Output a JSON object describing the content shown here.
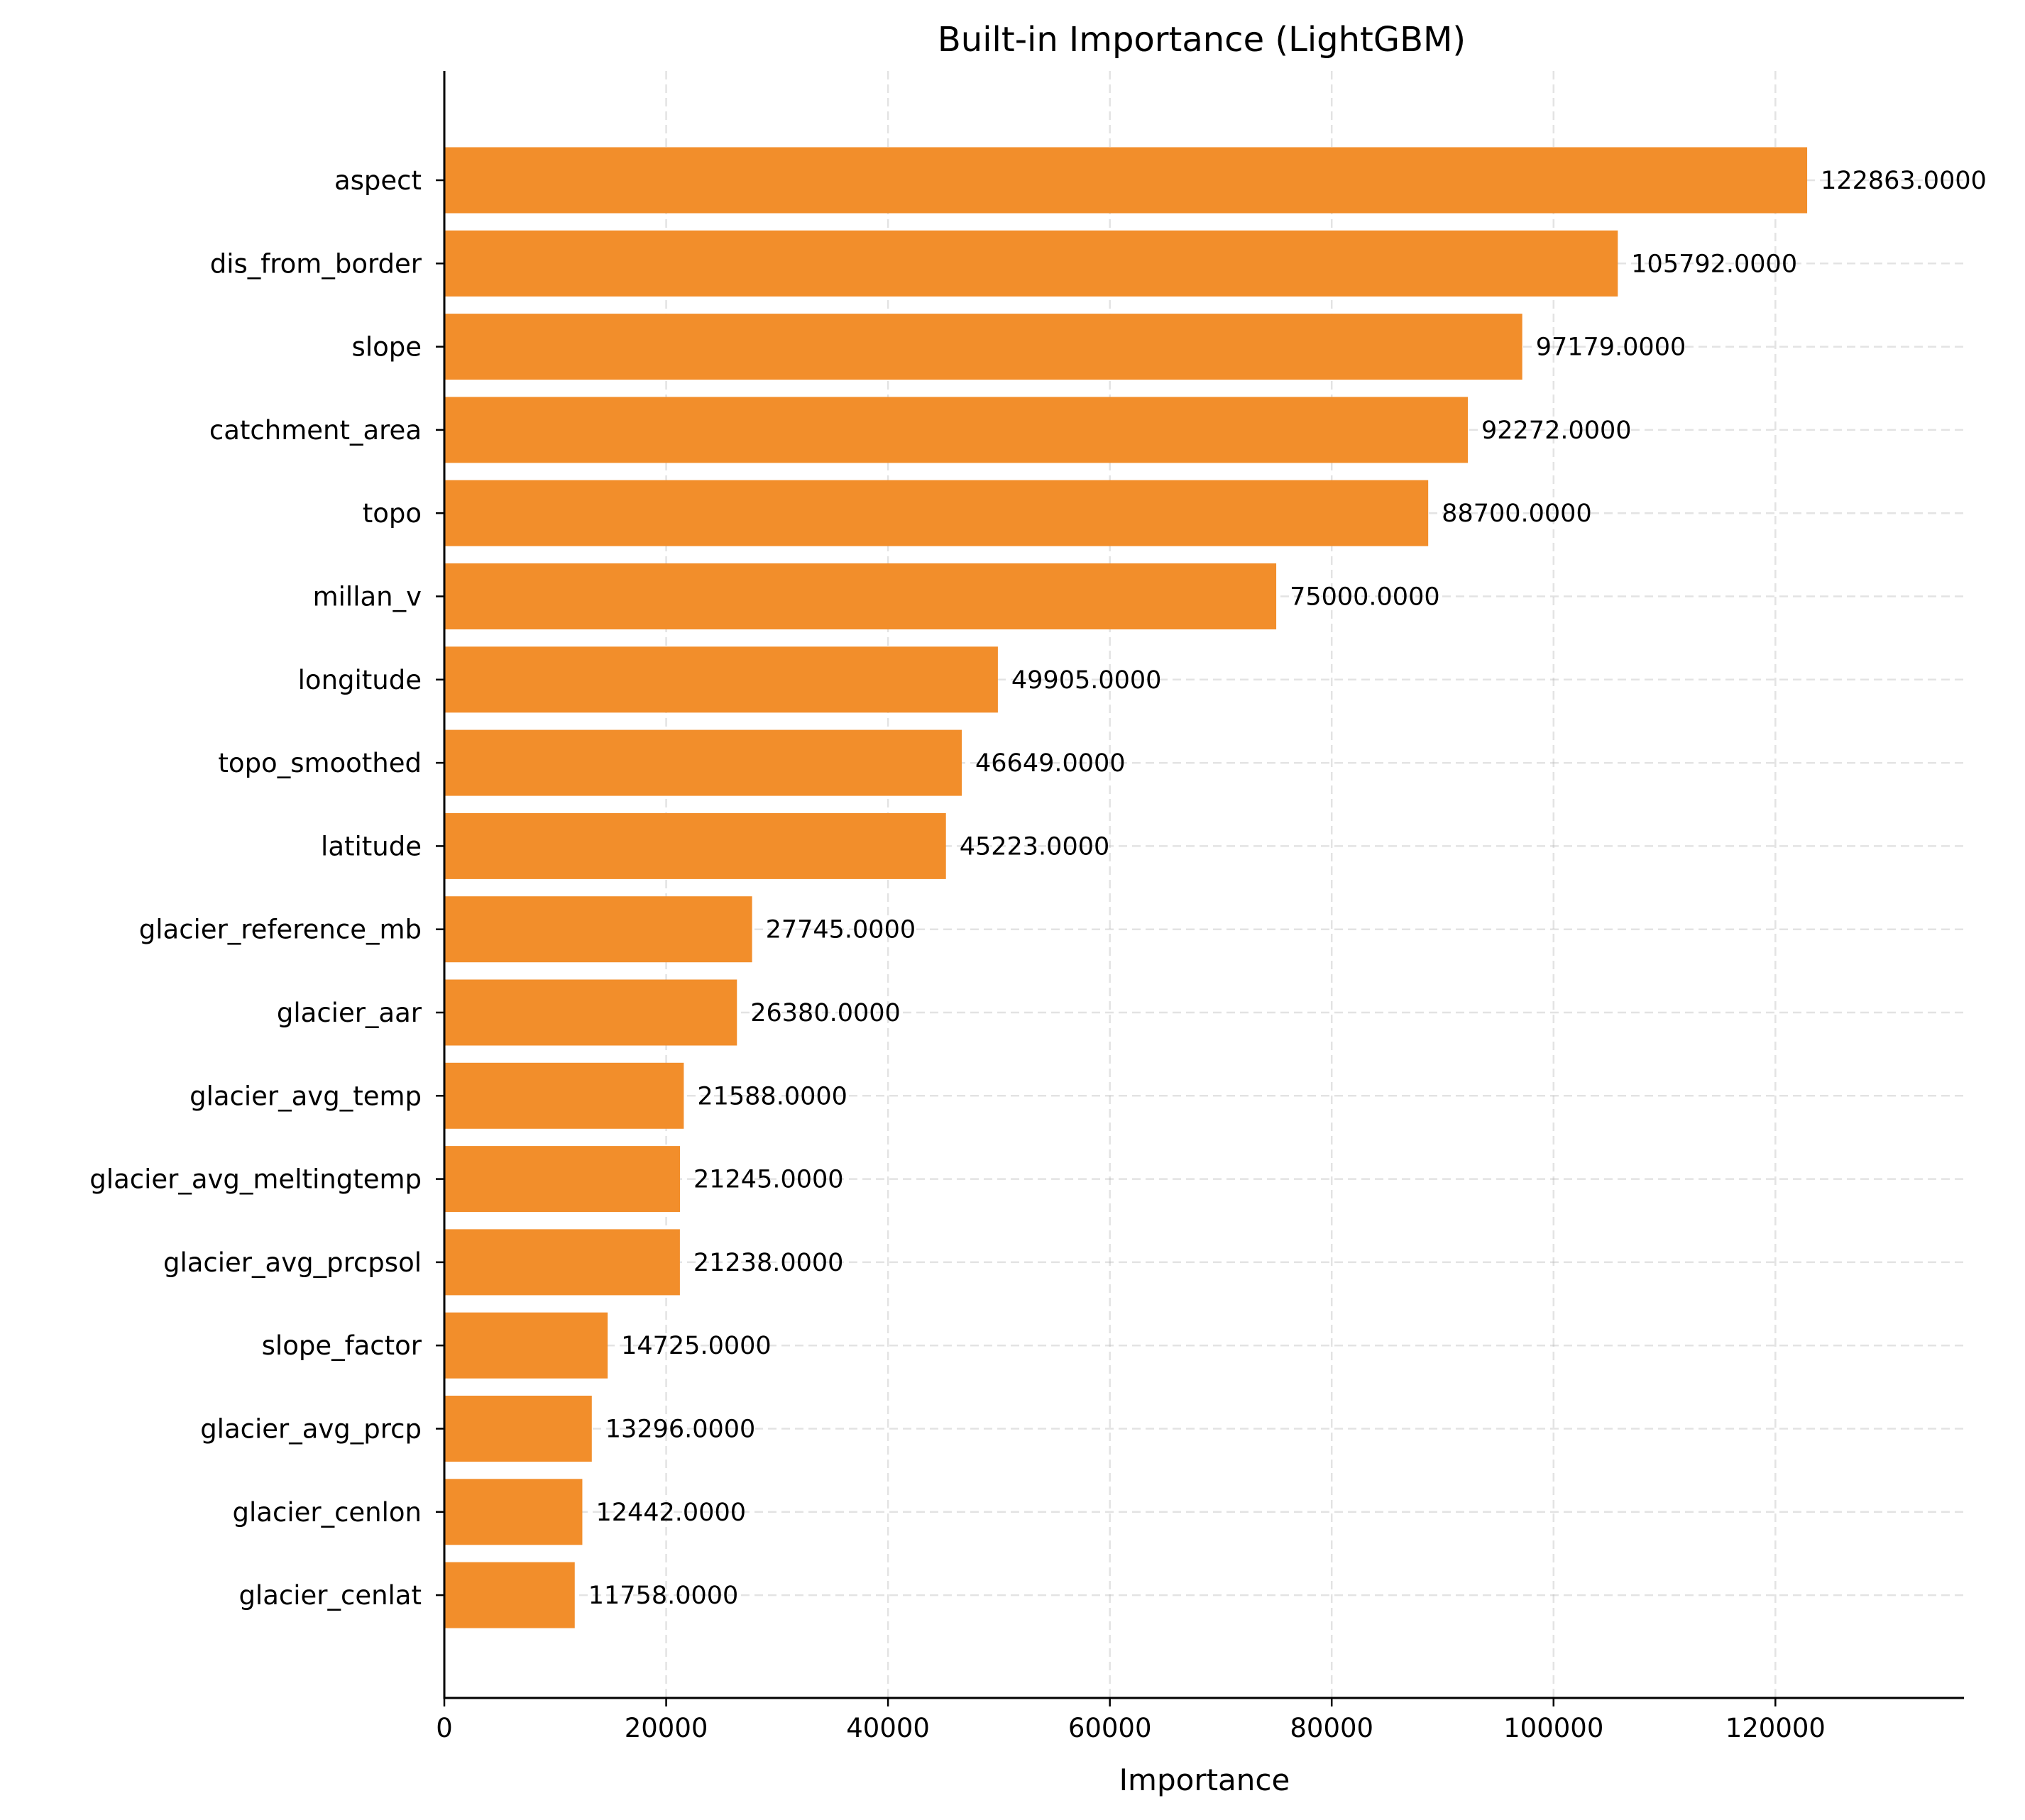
{
  "chart_data": {
    "type": "bar",
    "orientation": "horizontal",
    "title": "Built-in Importance (LightGBM)",
    "xlabel": "Importance",
    "ylabel": "",
    "xlim": [
      0,
      137000
    ],
    "xticks": [
      0,
      20000,
      40000,
      60000,
      80000,
      100000,
      120000
    ],
    "grid": true,
    "bar_color": "#f28e2b",
    "categories": [
      "aspect",
      "dis_from_border",
      "slope",
      "catchment_area",
      "topo",
      "millan_v",
      "longitude",
      "topo_smoothed",
      "latitude",
      "glacier_reference_mb",
      "glacier_aar",
      "glacier_avg_temp",
      "glacier_avg_meltingtemp",
      "glacier_avg_prcpsol",
      "slope_factor",
      "glacier_avg_prcp",
      "glacier_cenlon",
      "glacier_cenlat"
    ],
    "values": [
      122863,
      105792,
      97179,
      92272,
      88700,
      75000,
      49905,
      46649,
      45223,
      27745,
      26380,
      21588,
      21245,
      21238,
      14725,
      13296,
      12442,
      11758
    ],
    "value_labels": [
      "122863.0000",
      "105792.0000",
      "97179.0000",
      "92272.0000",
      "88700.0000",
      "75000.0000",
      "49905.0000",
      "46649.0000",
      "45223.0000",
      "27745.0000",
      "26380.0000",
      "21588.0000",
      "21245.0000",
      "21238.0000",
      "14725.0000",
      "13296.0000",
      "12442.0000",
      "11758.0000"
    ]
  }
}
